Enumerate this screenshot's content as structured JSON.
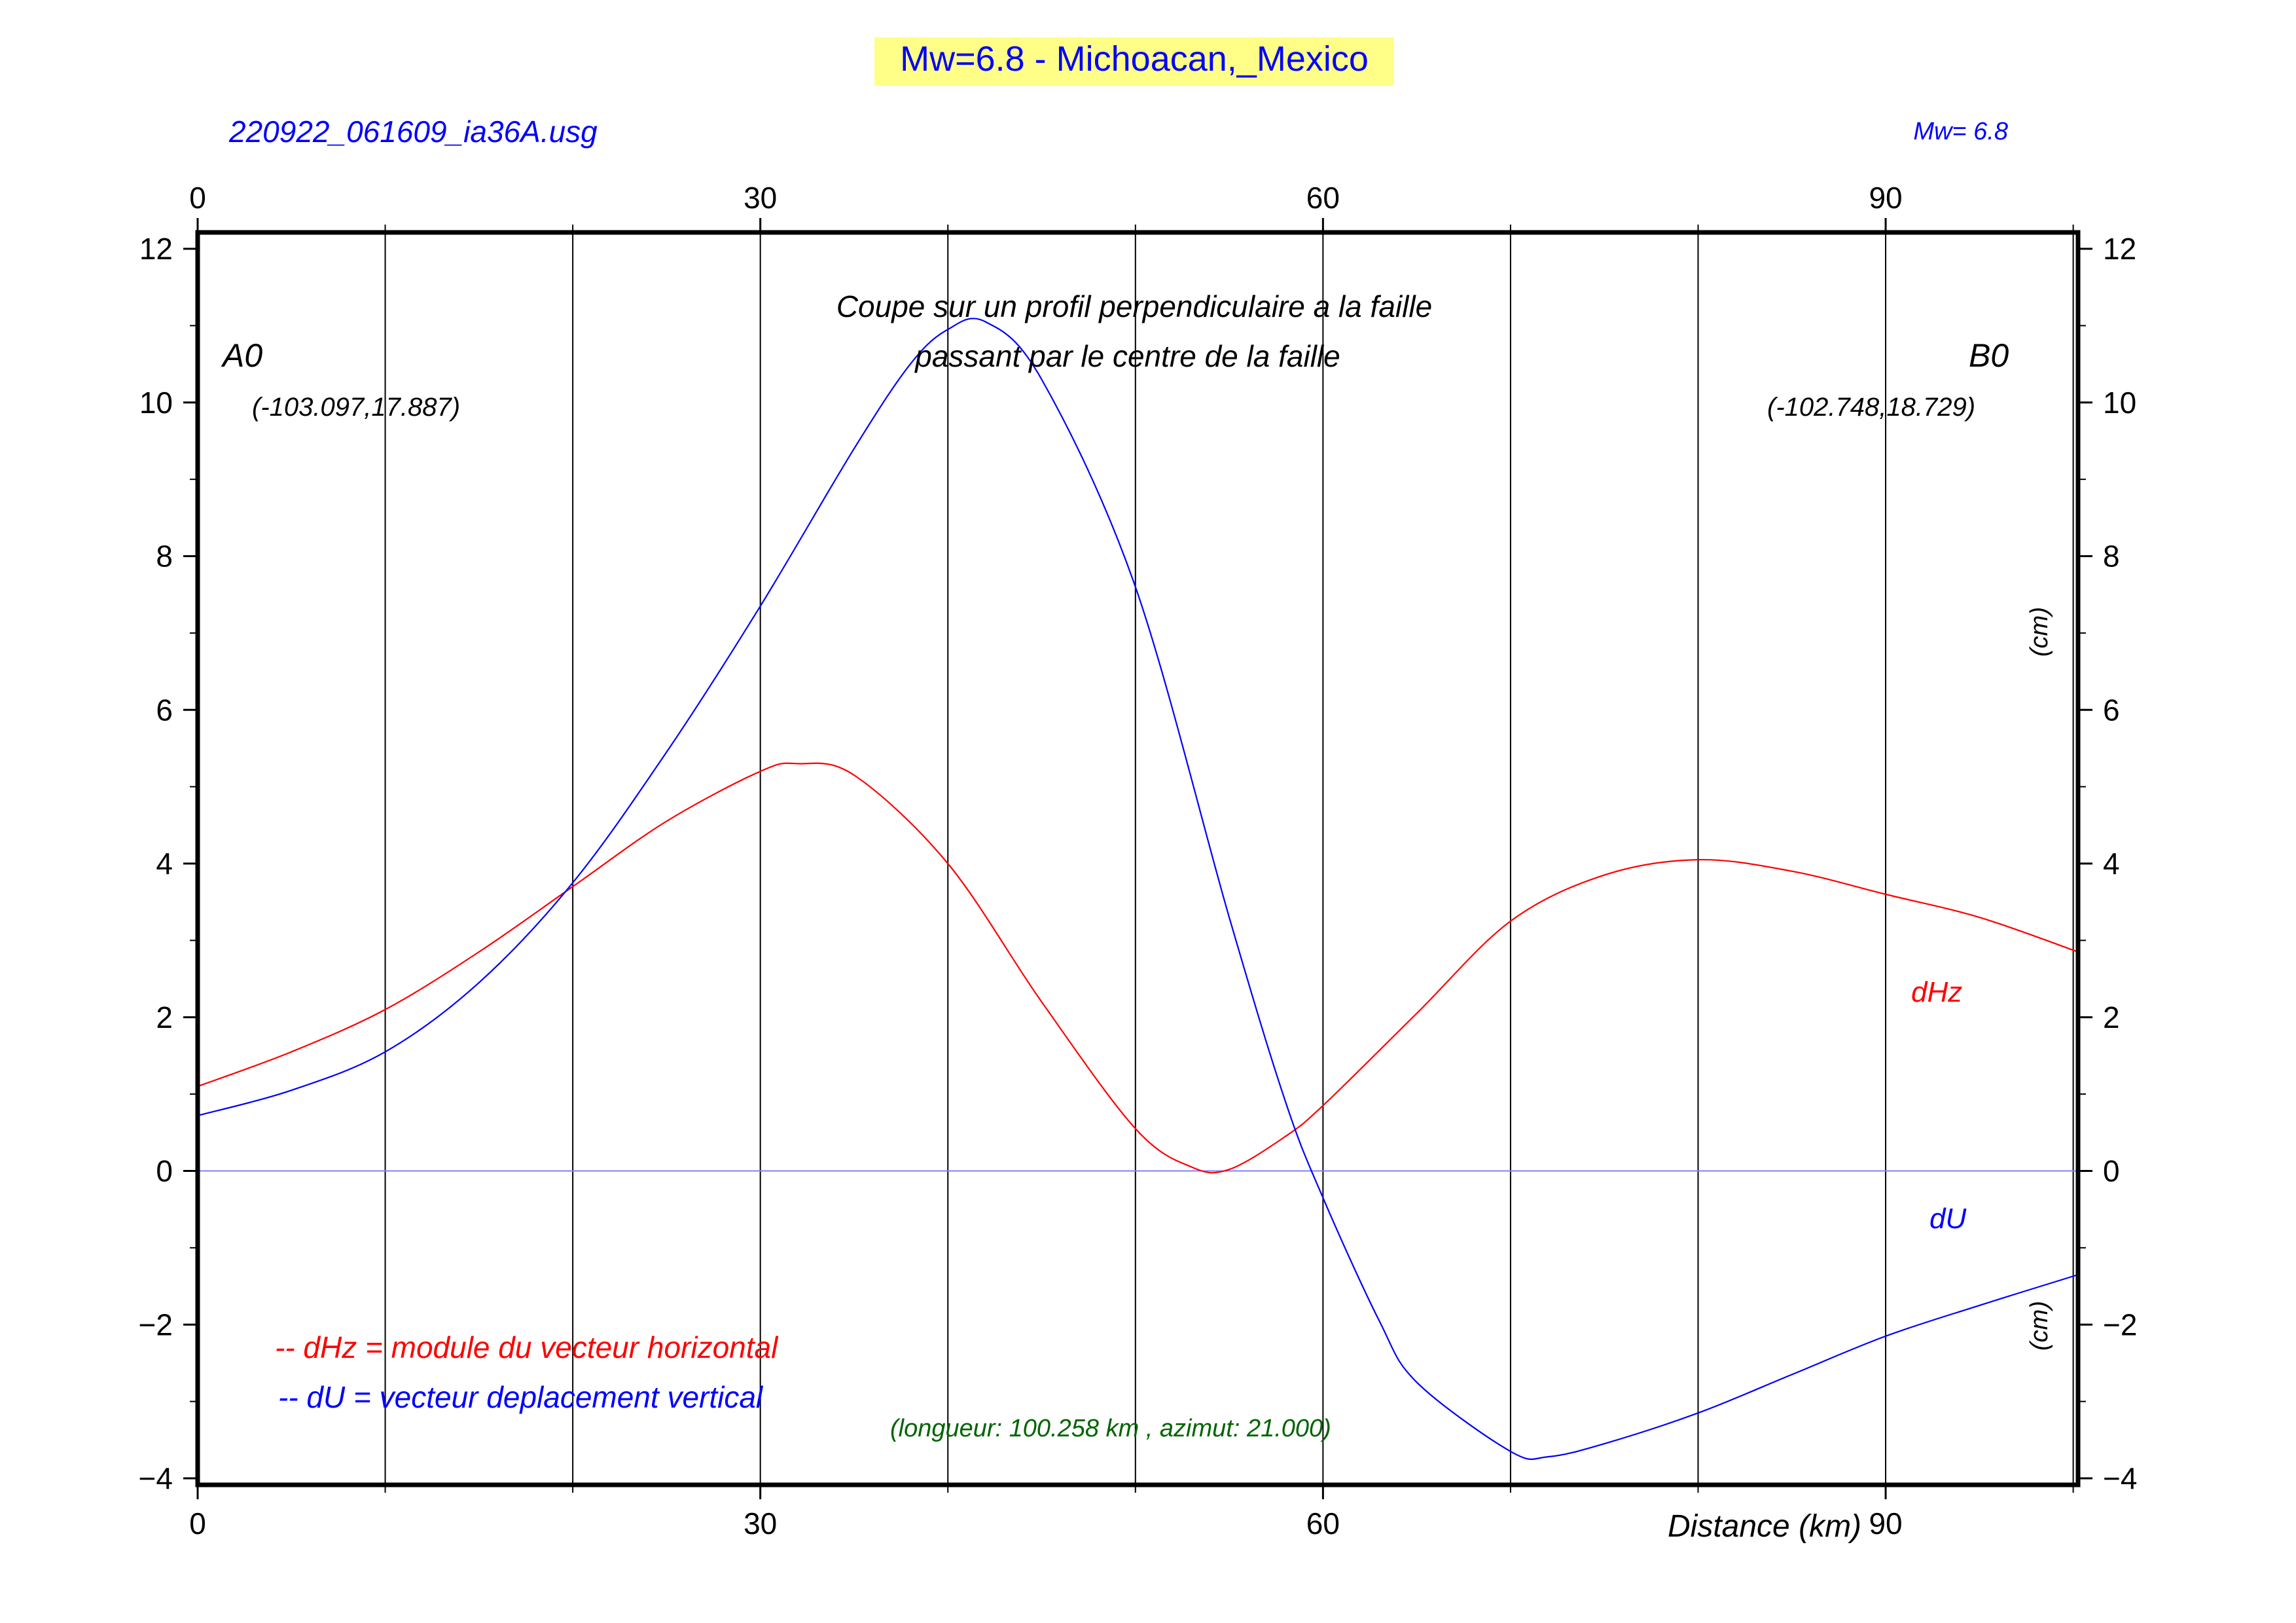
{
  "page": {
    "title": "Mw=6.8 - Michoacan,_Mexico",
    "file_label": "220922_061609_ia36A.usg",
    "mw_label": "Mw= 6.8",
    "profile_title_line1": "Coupe sur un profil perpendiculaire a la faille",
    "profile_title_line2": "passant par le centre de la faille",
    "point_a_label": "A0",
    "point_a_coords": "(-103.097,17.887)",
    "point_b_label": "B0",
    "point_b_coords": "(-102.748,18.729)",
    "unit_label_upper": "(cm)",
    "unit_label_lower": "(cm)",
    "series_label_dhz": "dHz",
    "series_label_du": "dU",
    "legend_dhz": "-- dHz = module du vecteur horizontal",
    "legend_du": "-- dU =  vecteur deplacement vertical",
    "profile_info": "(longueur: 100.258 km , azimut: 21.000)",
    "x_axis_title": "Distance (km)"
  },
  "colors": {
    "title_bg": "#ffff88",
    "title_text": "#0000ff",
    "dhz": "#ff0000",
    "du": "#0000ff",
    "info_text": "#006400",
    "grid": "#000000",
    "zero_line": "#8080ff"
  },
  "chart_data": {
    "type": "line",
    "xlabel": "Distance (km)",
    "ylabel": "(cm)",
    "xlim": [
      0,
      100.258
    ],
    "ylim": [
      -4,
      12
    ],
    "x_ticks": [
      0,
      30,
      60,
      90
    ],
    "y_ticks": [
      -4,
      -2,
      0,
      2,
      4,
      6,
      8,
      10,
      12
    ],
    "y_tick_labels": [
      "−4",
      "−2",
      "0",
      "2",
      "4",
      "6",
      "8",
      "10",
      "12"
    ],
    "vertical_gridlines_x": [
      10,
      20,
      30,
      40,
      50,
      60,
      70,
      80,
      90,
      100
    ],
    "zero_line": true,
    "series": [
      {
        "name": "dHz",
        "x": [
          0,
          5,
          10,
          15,
          20,
          25,
          30,
          32,
          35,
          40,
          45,
          50,
          53,
          55,
          58,
          60,
          65,
          70,
          75,
          80,
          85,
          90,
          95,
          100.258
        ],
        "values": [
          1.1,
          1.55,
          2.1,
          2.85,
          3.7,
          4.55,
          5.2,
          5.3,
          5.15,
          4.0,
          2.2,
          0.55,
          0.05,
          0.02,
          0.45,
          0.85,
          2.05,
          3.25,
          3.85,
          4.05,
          3.9,
          3.6,
          3.3,
          2.85
        ]
      },
      {
        "name": "dU",
        "x": [
          0,
          5,
          10,
          15,
          20,
          25,
          30,
          35,
          38,
          40,
          42,
          45,
          50,
          55,
          58,
          60,
          63,
          65,
          70,
          72,
          75,
          80,
          85,
          90,
          95,
          100.258
        ],
        "values": [
          0.72,
          1.05,
          1.55,
          2.45,
          3.75,
          5.45,
          7.35,
          9.4,
          10.5,
          10.95,
          11.05,
          10.3,
          7.6,
          3.3,
          0.9,
          -0.35,
          -1.95,
          -2.75,
          -3.65,
          -3.72,
          -3.55,
          -3.15,
          -2.65,
          -2.15,
          -1.75,
          -1.35
        ]
      }
    ]
  }
}
